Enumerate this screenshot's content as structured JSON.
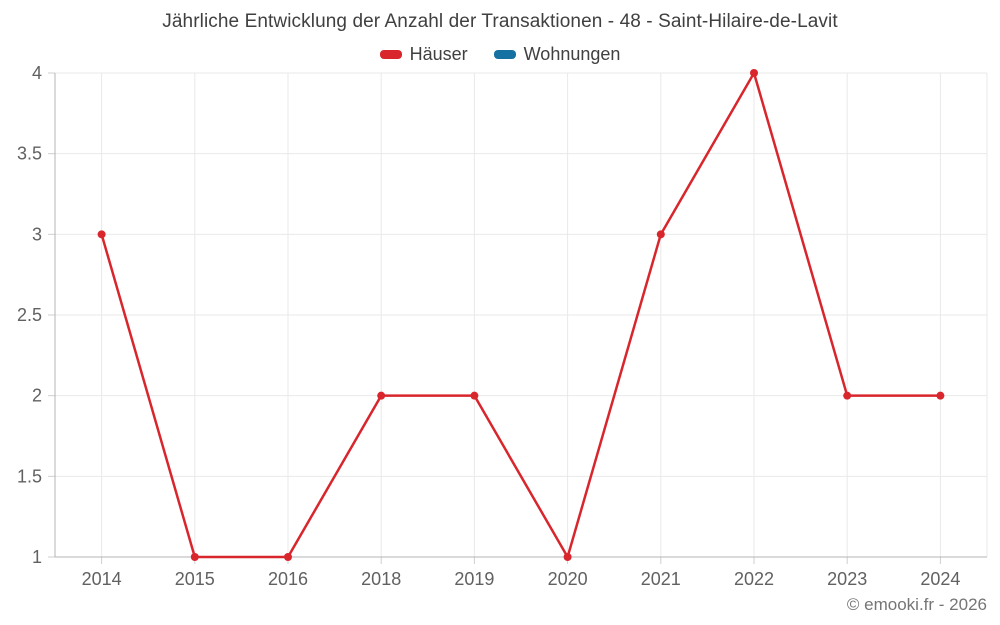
{
  "footer": "© emooki.fr - 2026",
  "chart_data": {
    "type": "line",
    "title": "Jährliche Entwicklung der Anzahl der Transaktionen - 48 - Saint-Hilaire-de-Lavit",
    "categories": [
      "2014",
      "2015",
      "2016",
      "2018",
      "2019",
      "2020",
      "2021",
      "2022",
      "2023",
      "2024"
    ],
    "series": [
      {
        "name": "Häuser",
        "color": "#d8262c",
        "values": [
          3,
          1,
          1,
          2,
          2,
          1,
          3,
          4,
          2,
          2
        ]
      },
      {
        "name": "Wohnungen",
        "color": "#1571a2",
        "values": []
      }
    ],
    "xlabel": "",
    "ylabel": "",
    "ylim": [
      1,
      4
    ],
    "yticks": [
      1,
      1.5,
      2,
      2.5,
      3,
      3.5,
      4
    ],
    "grid": true,
    "legend_position": "top",
    "point_style": "circle"
  },
  "ui": {
    "grid_color": "#e9e9e9",
    "axis_color": "#b4b4b4",
    "tick_color": "#cfcfcf",
    "label_color": "#616161",
    "title_color": "#404040",
    "footer_color": "#757575"
  }
}
